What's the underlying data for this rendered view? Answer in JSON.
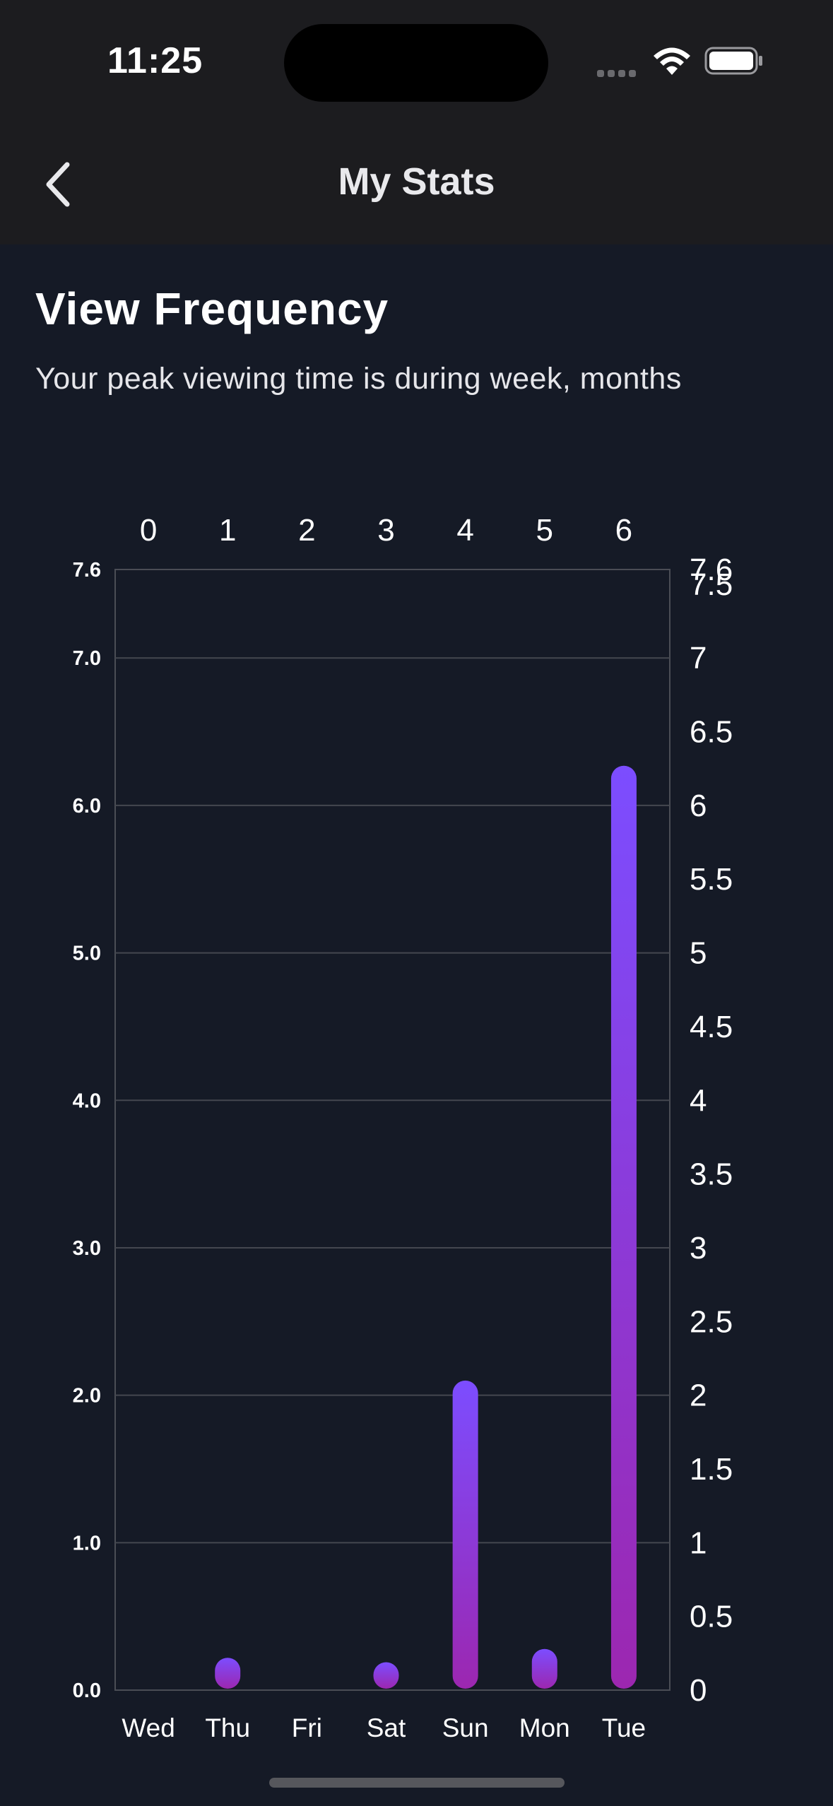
{
  "status_bar": {
    "time": "11:25"
  },
  "nav": {
    "title": "My Stats"
  },
  "section": {
    "title": "View Frequency",
    "subtitle": "Your peak viewing time is during week, months"
  },
  "chart_data": {
    "type": "bar",
    "categories": [
      "Wed",
      "Thu",
      "Fri",
      "Sat",
      "Sun",
      "Mon",
      "Tue"
    ],
    "top_axis_ticks": [
      "0",
      "1",
      "2",
      "3",
      "4",
      "5",
      "6"
    ],
    "values": [
      0,
      0.2,
      0,
      0.17,
      2.08,
      0.26,
      6.25
    ],
    "left_axis": {
      "ylim": [
        0,
        7.6
      ],
      "ticks": [
        0,
        1,
        2,
        3,
        4,
        5,
        6,
        7,
        7.6
      ],
      "tick_labels": [
        "0.0",
        "1.0",
        "2.0",
        "3.0",
        "4.0",
        "5.0",
        "6.0",
        "7.0",
        "7.6"
      ]
    },
    "right_axis": {
      "ticks": [
        0,
        0.5,
        1,
        1.5,
        2,
        2.5,
        3,
        3.5,
        4,
        4.5,
        5,
        5.5,
        6,
        6.5,
        7,
        7.5,
        7.6
      ],
      "tick_labels": [
        "0",
        "0.5",
        "1",
        "1.5",
        "2",
        "2.5",
        "3",
        "3.5",
        "4",
        "4.5",
        "5",
        "5.5",
        "6",
        "6.5",
        "7",
        "7.5",
        "7.6"
      ]
    },
    "grid": true,
    "bar_gradient": [
      "#7c4dff",
      "#9c27b0"
    ]
  }
}
